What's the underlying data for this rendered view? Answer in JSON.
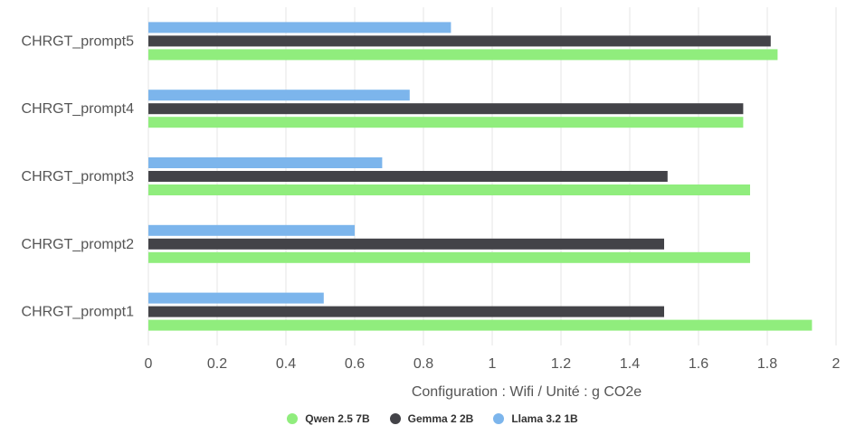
{
  "chart_data": {
    "type": "bar",
    "orientation": "horizontal",
    "title": "",
    "xlabel": "Configuration : Wifi / Unité : g CO2e",
    "ylabel": "",
    "xlim": [
      0,
      2
    ],
    "xticks": [
      "0",
      "0.2",
      "0.4",
      "0.6",
      "0.8",
      "1",
      "1.2",
      "1.4",
      "1.6",
      "1.8",
      "2"
    ],
    "grid": true,
    "legend_position": "bottom",
    "categories": [
      "CHRGT_prompt5",
      "CHRGT_prompt4",
      "CHRGT_prompt3",
      "CHRGT_prompt2",
      "CHRGT_prompt1"
    ],
    "series": [
      {
        "name": "Llama 3.2 1B",
        "color": "#7cb5ec",
        "values": [
          0.88,
          0.76,
          0.68,
          0.6,
          0.51
        ]
      },
      {
        "name": "Gemma 2 2B",
        "color": "#434348",
        "values": [
          1.81,
          1.73,
          1.51,
          1.5,
          1.5
        ]
      },
      {
        "name": "Qwen 2.5 7B",
        "color": "#90ed7d",
        "values": [
          1.83,
          1.73,
          1.75,
          1.75,
          1.93
        ]
      }
    ],
    "legend": [
      {
        "name": "Qwen 2.5 7B",
        "color": "#90ed7d"
      },
      {
        "name": "Gemma 2 2B",
        "color": "#434348"
      },
      {
        "name": "Llama 3.2 1B",
        "color": "#7cb5ec"
      }
    ]
  }
}
